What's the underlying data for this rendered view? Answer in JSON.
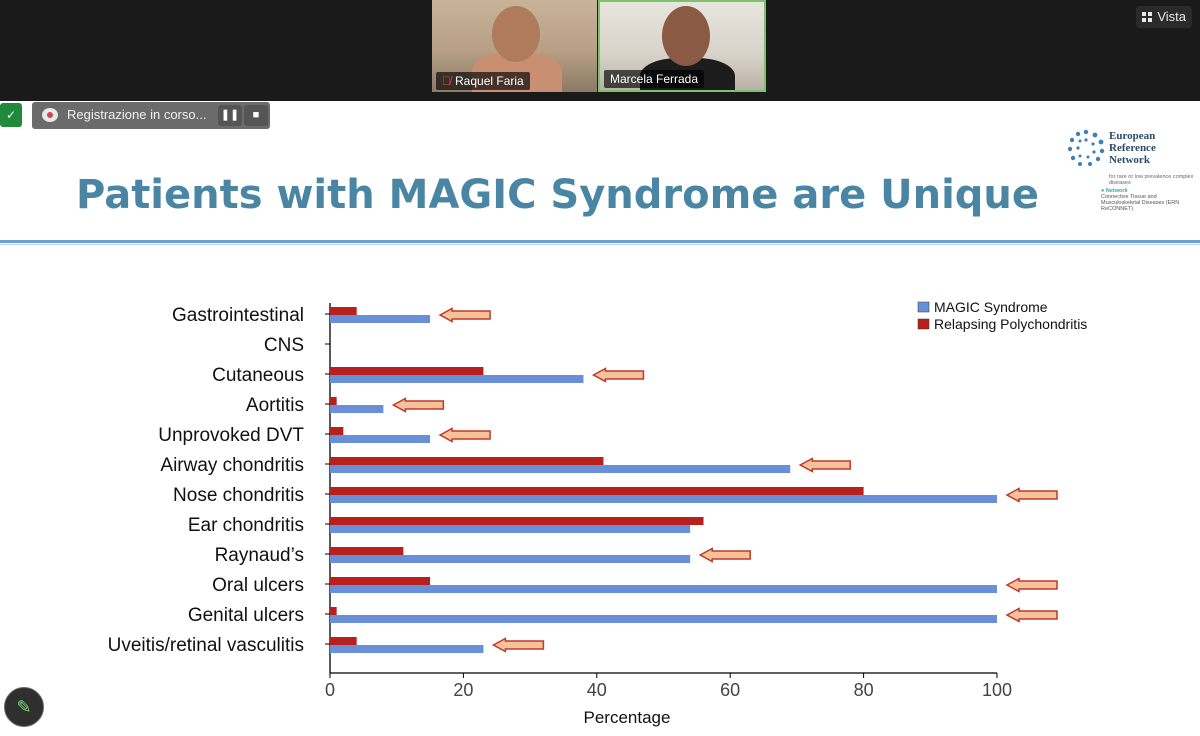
{
  "participants": [
    {
      "name": "Raquel Faria",
      "muted": true
    },
    {
      "name": "Marcela Ferrada",
      "muted": false
    }
  ],
  "view_button": "Vista",
  "recording": {
    "label": "Registrazione in corso..."
  },
  "slide": {
    "title": "Patients with MAGIC Syndrome are Unique",
    "logo": {
      "name_lines": [
        "European",
        "Reference",
        "Network"
      ],
      "subtitle": "for rare or low prevalence complex diseases",
      "network_label": "Network",
      "network_text": "Connective Tissue and Musculoskeletal Diseases (ERN ReCONNET)"
    }
  },
  "colors": {
    "magic": "#6a8fd9",
    "rp": "#b8201e",
    "title": "#4a86a4",
    "arrow_fill": "#f6c29b",
    "arrow_stroke": "#c0382a"
  },
  "chart_data": {
    "type": "bar",
    "orientation": "horizontal",
    "categories": [
      "Gastrointestinal",
      "CNS",
      "Cutaneous",
      "Aortitis",
      "Unprovoked DVT",
      "Airway chondritis",
      "Nose chondritis",
      "Ear chondritis",
      "Raynaud’s",
      "Oral ulcers",
      "Genital ulcers",
      "Uveitis/retinal vasculitis"
    ],
    "series": [
      {
        "name": "MAGIC Syndrome",
        "color": "#6a8fd9",
        "values": [
          15,
          0,
          38,
          8,
          15,
          69,
          100,
          54,
          54,
          100,
          100,
          23
        ]
      },
      {
        "name": "Relapsing Polychondritis",
        "color": "#b8201e",
        "values": [
          4,
          0,
          23,
          1,
          2,
          41,
          80,
          56,
          11,
          15,
          1,
          4
        ]
      }
    ],
    "xlabel": "Percentage",
    "xlim": [
      0,
      100
    ],
    "xticks": [
      "0",
      "20",
      "40",
      "60",
      "80",
      "100"
    ],
    "legend_position": "top-right",
    "arrows_at": [
      "Gastrointestinal",
      "Cutaneous",
      "Aortitis",
      "Unprovoked DVT",
      "Airway chondritis",
      "Nose chondritis",
      "Raynaud’s",
      "Oral ulcers",
      "Genital ulcers",
      "Uveitis/retinal vasculitis"
    ]
  }
}
